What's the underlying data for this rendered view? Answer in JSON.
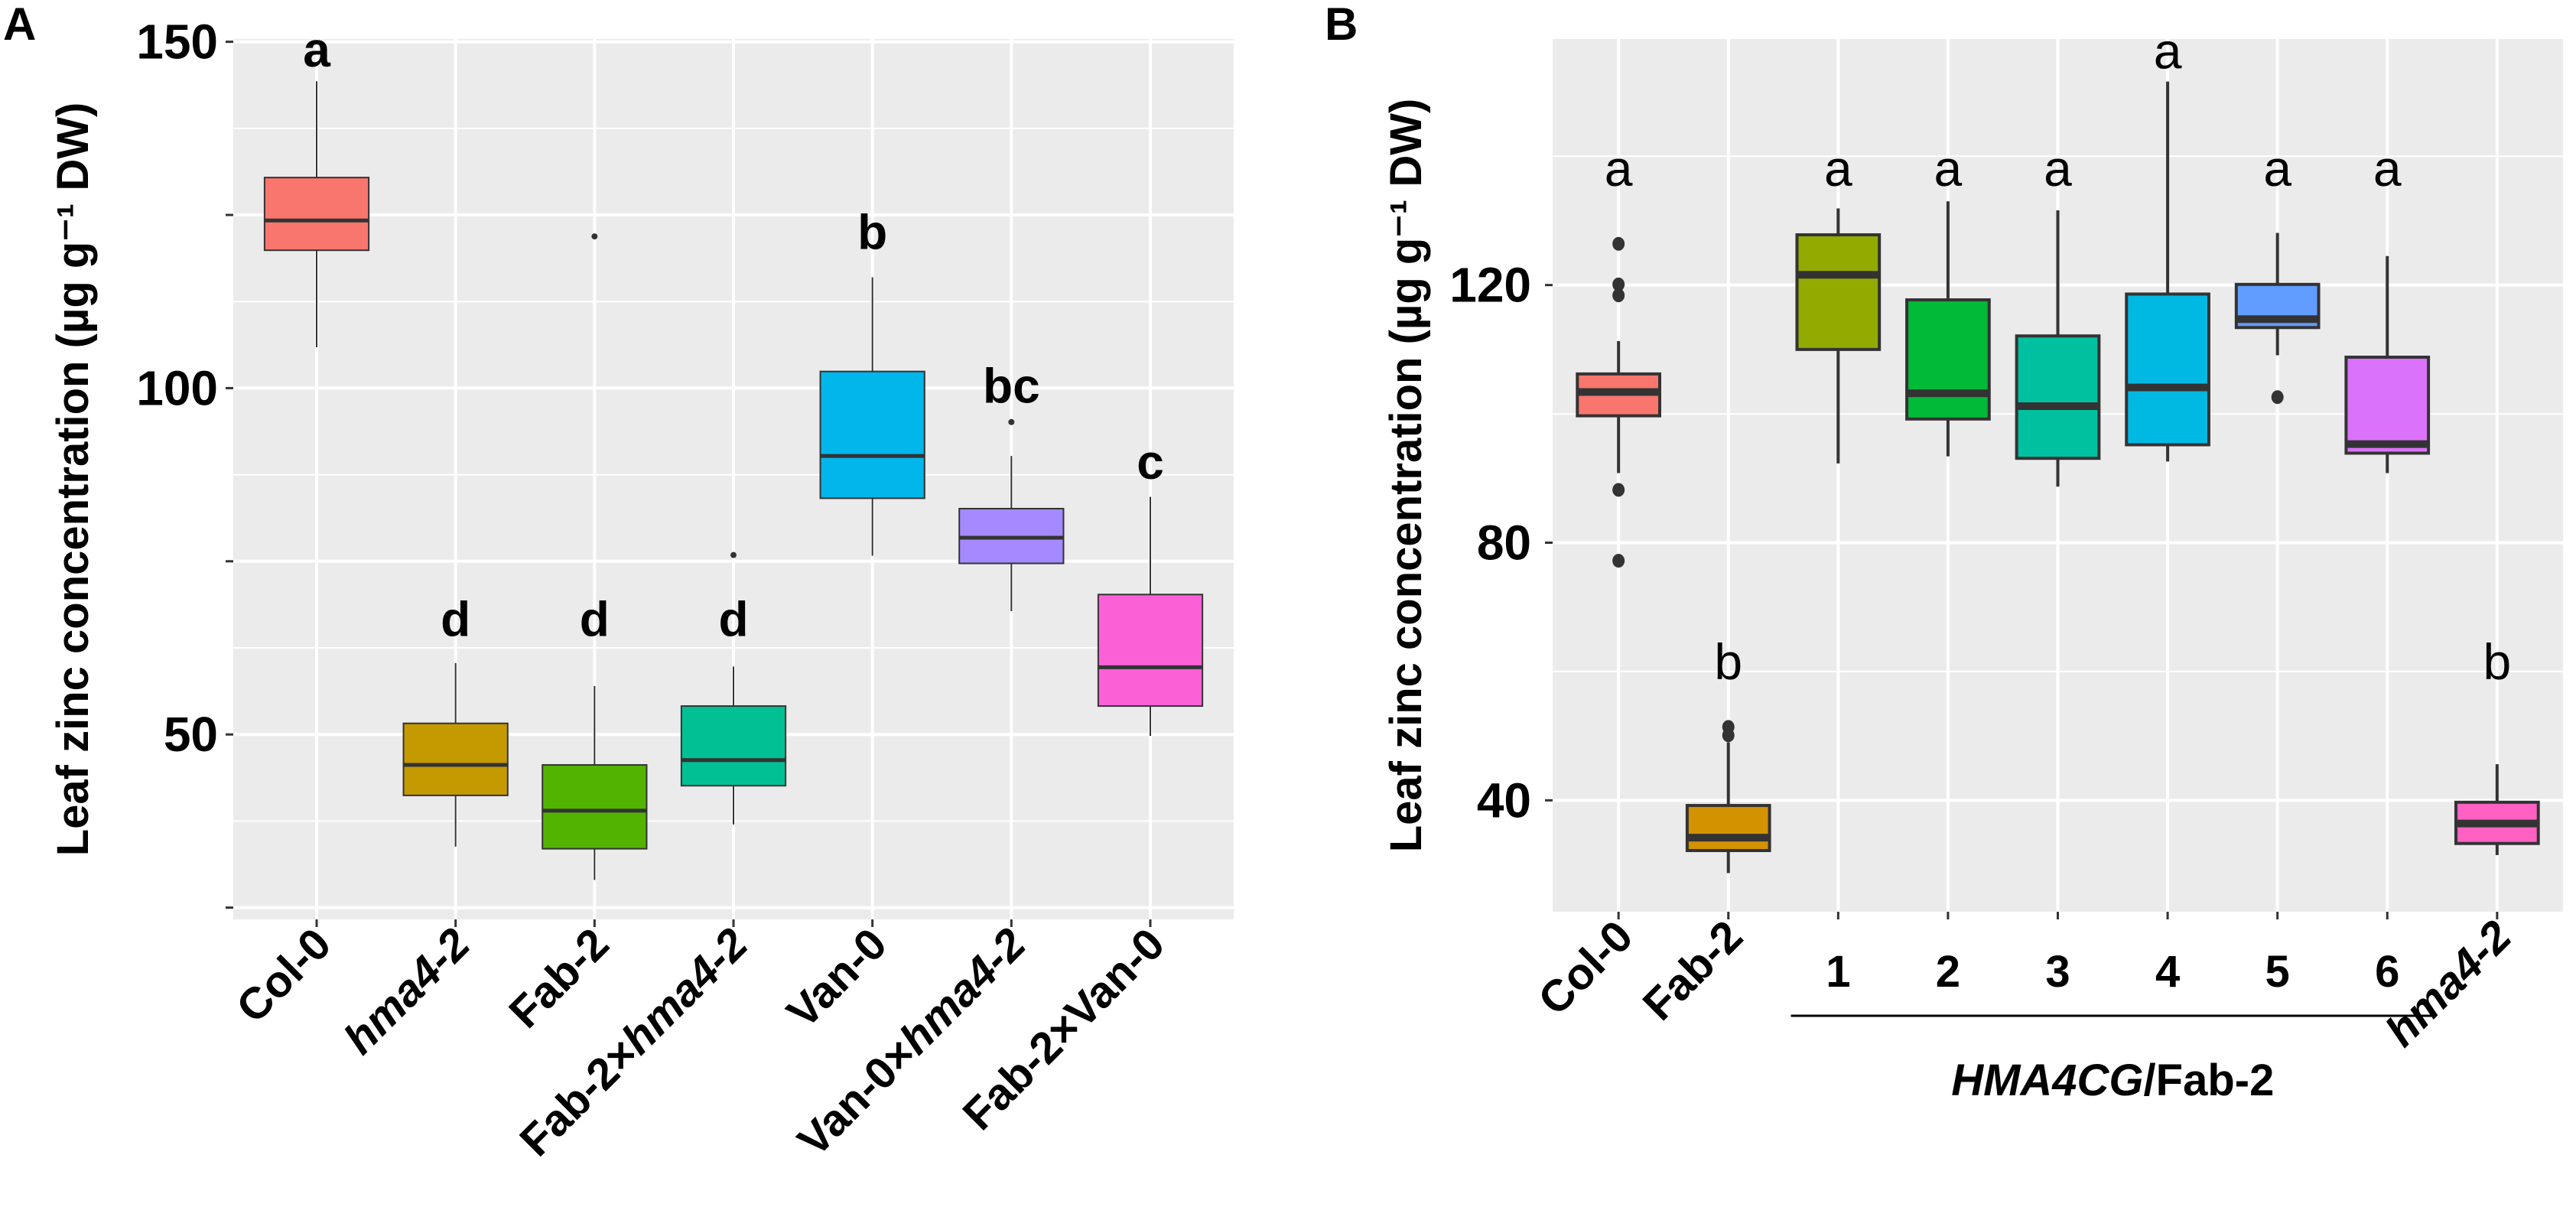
{
  "chart_data": [
    {
      "panel": "A",
      "type": "box",
      "title": "",
      "xlabel": "",
      "ylabel": "Leaf zinc concentration (µg g⁻¹ DW)",
      "ylim": [
        23.3,
        150.4
      ],
      "ytick_labels": [
        50,
        100,
        150
      ],
      "ytick_marks": [
        25,
        50,
        75,
        100,
        125,
        150
      ],
      "grid": true,
      "groups": [
        {
          "label_parts": [
            {
              "t": "Col-0"
            }
          ],
          "color": "#F8766D",
          "whisker_low": 105.9,
          "q1": 119.9,
          "median": 124.2,
          "q3": 130.4,
          "whisker_high": 144.3,
          "outliers": [],
          "letter": "a",
          "letter_y": 146.4
        },
        {
          "label_parts": [
            {
              "t": "hma4-2",
              "i": true
            }
          ],
          "color": "#C49A00",
          "whisker_low": 33.8,
          "q1": 41.2,
          "median": 45.6,
          "q3": 51.6,
          "whisker_high": 60.3,
          "outliers": [],
          "letter": "d",
          "letter_y": 64.2
        },
        {
          "label_parts": [
            {
              "t": "Fab-2"
            }
          ],
          "color": "#53B400",
          "whisker_low": 29.0,
          "q1": 33.5,
          "median": 39.0,
          "q3": 45.6,
          "whisker_high": 57.0,
          "outliers": [
            121.9
          ],
          "letter": "d",
          "letter_y": 64.2
        },
        {
          "label_parts": [
            {
              "t": "Fab-2×"
            },
            {
              "t": "hma4-2",
              "i": true
            }
          ],
          "color": "#00C094",
          "whisker_low": 37.0,
          "q1": 42.6,
          "median": 46.3,
          "q3": 54.1,
          "whisker_high": 59.8,
          "outliers": [
            75.9
          ],
          "letter": "d",
          "letter_y": 64.2
        },
        {
          "label_parts": [
            {
              "t": "Van-0"
            }
          ],
          "color": "#00B6EB",
          "whisker_low": 75.8,
          "q1": 84.1,
          "median": 90.2,
          "q3": 102.4,
          "whisker_high": 116.0,
          "outliers": [],
          "letter": "b",
          "letter_y": 120.1
        },
        {
          "label_parts": [
            {
              "t": "Van-0×"
            },
            {
              "t": "hma4-2",
              "i": true
            }
          ],
          "color": "#A58AFF",
          "whisker_low": 67.8,
          "q1": 74.7,
          "median": 78.4,
          "q3": 82.6,
          "whisker_high": 90.2,
          "outliers": [
            95.1
          ],
          "letter": "bc",
          "letter_y": 97.9
        },
        {
          "label_parts": [
            {
              "t": "Fab-2×Van-0"
            }
          ],
          "color": "#FB61D7",
          "whisker_low": 49.8,
          "q1": 54.1,
          "median": 59.7,
          "q3": 70.2,
          "whisker_high": 84.3,
          "outliers": [],
          "letter": "c",
          "letter_y": 86.9
        }
      ]
    },
    {
      "panel": "B",
      "type": "box",
      "title": "",
      "xlabel": "",
      "ylabel": "Leaf zinc concentration (µg g⁻¹ DW)",
      "ylim": [
        22.7,
        158.2
      ],
      "ytick_labels": [
        40,
        80,
        120
      ],
      "ytick_marks": [
        40,
        80,
        120
      ],
      "grid": true,
      "group_label": {
        "italic": "HMA4CG",
        "normal": "/Fab-2",
        "from": 2,
        "to": 7
      },
      "groups": [
        {
          "label_parts": [
            {
              "t": "Col-0"
            }
          ],
          "rotated": true,
          "color": "#F8766D",
          "whisker_low": 90.8,
          "q1": 99.7,
          "median": 103.4,
          "q3": 106.2,
          "whisker_high": 111.3,
          "outliers": [
            126.4,
            120.1,
            118.4,
            88.2,
            77.2
          ],
          "letter": "a",
          "letter_y": 135.4
        },
        {
          "label_parts": [
            {
              "t": "Fab-2"
            }
          ],
          "rotated": true,
          "color": "#D39200",
          "whisker_low": 28.7,
          "q1": 32.2,
          "median": 34.2,
          "q3": 39.2,
          "whisker_high": 49.0,
          "outliers": [
            51.4,
            50.1
          ],
          "letter": "b",
          "letter_y": 58.8
        },
        {
          "label_parts": [
            {
              "t": "1"
            }
          ],
          "rotated": false,
          "color": "#93AA00",
          "whisker_low": 92.3,
          "q1": 110.0,
          "median": 121.6,
          "q3": 127.8,
          "whisker_high": 131.9,
          "outliers": [],
          "letter": "a",
          "letter_y": 135.4
        },
        {
          "label_parts": [
            {
              "t": "2"
            }
          ],
          "rotated": false,
          "color": "#00BA38",
          "whisker_low": 93.4,
          "q1": 99.2,
          "median": 103.2,
          "q3": 117.7,
          "whisker_high": 133.0,
          "outliers": [],
          "letter": "a",
          "letter_y": 135.4
        },
        {
          "label_parts": [
            {
              "t": "3"
            }
          ],
          "rotated": false,
          "color": "#00C19F",
          "whisker_low": 88.7,
          "q1": 93.1,
          "median": 101.2,
          "q3": 112.1,
          "whisker_high": 131.6,
          "outliers": [],
          "letter": "a",
          "letter_y": 135.4
        },
        {
          "label_parts": [
            {
              "t": "4"
            }
          ],
          "rotated": false,
          "color": "#00B9E3",
          "whisker_low": 92.6,
          "q1": 95.2,
          "median": 104.1,
          "q3": 118.6,
          "whisker_high": 151.6,
          "outliers": [],
          "letter": "a",
          "letter_y": 153.6
        },
        {
          "label_parts": [
            {
              "t": "5"
            }
          ],
          "rotated": false,
          "color": "#619CFF",
          "whisker_low": 109.1,
          "q1": 113.4,
          "median": 114.7,
          "q3": 120.1,
          "whisker_high": 128.1,
          "outliers": [
            102.6
          ],
          "letter": "a",
          "letter_y": 135.4
        },
        {
          "label_parts": [
            {
              "t": "6"
            }
          ],
          "rotated": false,
          "color": "#DB72FB",
          "whisker_low": 90.8,
          "q1": 93.9,
          "median": 95.3,
          "q3": 108.8,
          "whisker_high": 124.5,
          "outliers": [],
          "letter": "a",
          "letter_y": 135.4
        },
        {
          "label_parts": [
            {
              "t": "hma4-2",
              "i": true
            }
          ],
          "rotated": true,
          "color": "#FF61C3",
          "whisker_low": 31.5,
          "q1": 33.3,
          "median": 36.4,
          "q3": 39.7,
          "whisker_high": 45.6,
          "outliers": [],
          "letter": "b",
          "letter_y": 58.8
        }
      ]
    }
  ]
}
